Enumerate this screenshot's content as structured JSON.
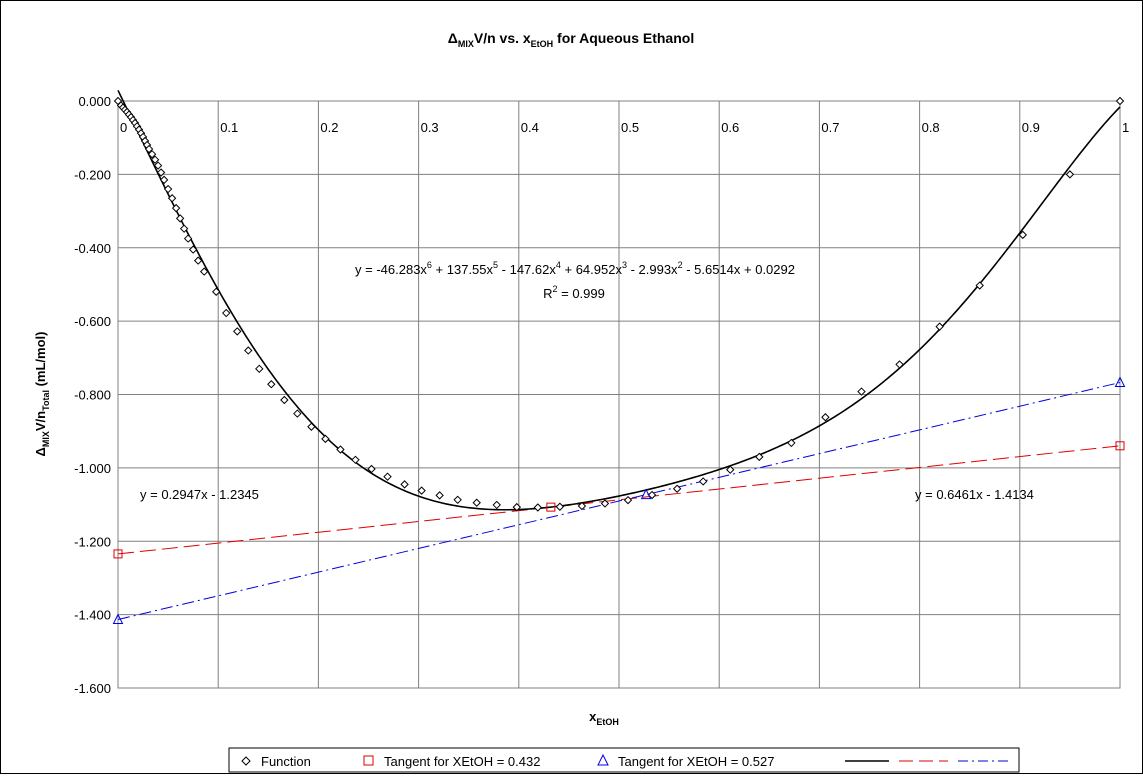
{
  "chart_data": {
    "type": "scatter",
    "title": {
      "main": "Δ",
      "sub1": "MIX",
      "mid": "V/n vs. x",
      "sub2": "EtOH",
      "end": " for Aqueous Ethanol"
    },
    "xlabel": {
      "main": "x",
      "sub": "EtOH"
    },
    "ylabel": {
      "main": "Δ",
      "sub1": "MIX",
      "mid": "V/n",
      "sub2": "Total",
      "end": " (mL/mol)"
    },
    "xlim": [
      0,
      1
    ],
    "ylim": [
      -1.6,
      0
    ],
    "x_ticks": [
      "0",
      "0.1",
      "0.2",
      "0.3",
      "0.4",
      "0.5",
      "0.6",
      "0.7",
      "0.8",
      "0.9",
      "1"
    ],
    "y_ticks": [
      "0.000",
      "-0.200",
      "-0.400",
      "-0.600",
      "-0.800",
      "-1.000",
      "-1.200",
      "-1.400",
      "-1.600"
    ],
    "grid": true,
    "legend_position": "bottom",
    "series": [
      {
        "name": "Function",
        "marker": "diamond",
        "color": "#000000",
        "points": [
          [
            0.0,
            0.0
          ],
          [
            0.003,
            -0.012
          ],
          [
            0.005,
            -0.018
          ],
          [
            0.007,
            -0.024
          ],
          [
            0.009,
            -0.03
          ],
          [
            0.011,
            -0.037
          ],
          [
            0.013,
            -0.044
          ],
          [
            0.015,
            -0.052
          ],
          [
            0.017,
            -0.06
          ],
          [
            0.019,
            -0.069
          ],
          [
            0.021,
            -0.078
          ],
          [
            0.023,
            -0.088
          ],
          [
            0.025,
            -0.098
          ],
          [
            0.027,
            -0.109
          ],
          [
            0.029,
            -0.12
          ],
          [
            0.031,
            -0.131
          ],
          [
            0.034,
            -0.145
          ],
          [
            0.037,
            -0.16
          ],
          [
            0.04,
            -0.176
          ],
          [
            0.043,
            -0.195
          ],
          [
            0.046,
            -0.215
          ],
          [
            0.05,
            -0.24
          ],
          [
            0.054,
            -0.265
          ],
          [
            0.058,
            -0.292
          ],
          [
            0.062,
            -0.32
          ],
          [
            0.066,
            -0.348
          ],
          [
            0.07,
            -0.375
          ],
          [
            0.075,
            -0.405
          ],
          [
            0.08,
            -0.435
          ],
          [
            0.086,
            -0.465
          ],
          [
            0.098,
            -0.52
          ],
          [
            0.108,
            -0.578
          ],
          [
            0.119,
            -0.628
          ],
          [
            0.13,
            -0.68
          ],
          [
            0.141,
            -0.73
          ],
          [
            0.153,
            -0.772
          ],
          [
            0.166,
            -0.815
          ],
          [
            0.179,
            -0.852
          ],
          [
            0.193,
            -0.888
          ],
          [
            0.207,
            -0.921
          ],
          [
            0.222,
            -0.95
          ],
          [
            0.237,
            -0.978
          ],
          [
            0.253,
            -1.003
          ],
          [
            0.269,
            -1.024
          ],
          [
            0.286,
            -1.045
          ],
          [
            0.303,
            -1.062
          ],
          [
            0.321,
            -1.075
          ],
          [
            0.339,
            -1.087
          ],
          [
            0.358,
            -1.095
          ],
          [
            0.378,
            -1.101
          ],
          [
            0.398,
            -1.107
          ],
          [
            0.419,
            -1.108
          ],
          [
            0.441,
            -1.106
          ],
          [
            0.463,
            -1.104
          ],
          [
            0.486,
            -1.097
          ],
          [
            0.509,
            -1.088
          ],
          [
            0.533,
            -1.074
          ],
          [
            0.558,
            -1.057
          ],
          [
            0.584,
            -1.037
          ],
          [
            0.611,
            -1.005
          ],
          [
            0.64,
            -0.97
          ],
          [
            0.672,
            -0.932
          ],
          [
            0.706,
            -0.862
          ],
          [
            0.742,
            -0.792
          ],
          [
            0.78,
            -0.718
          ],
          [
            0.82,
            -0.615
          ],
          [
            0.86,
            -0.503
          ],
          [
            0.903,
            -0.365
          ],
          [
            0.95,
            -0.2
          ],
          [
            1.0,
            0.0
          ]
        ]
      },
      {
        "name": "Tangent for XEtOH = 0.432",
        "marker": "square",
        "color": "#e00000",
        "points": [
          [
            0,
            -1.2345
          ],
          [
            0.432,
            -1.107
          ],
          [
            1,
            -0.9398
          ]
        ]
      },
      {
        "name": "Tangent for XEtOH = 0.527",
        "marker": "triangle",
        "color": "#0000e0",
        "points": [
          [
            0,
            -1.4134
          ],
          [
            0.527,
            -1.073
          ],
          [
            1,
            -0.7673
          ]
        ]
      }
    ],
    "fit": {
      "coefficients": [
        0.0292,
        -5.6514,
        -2.993,
        64.952,
        -147.62,
        137.55,
        -46.283
      ],
      "eq": {
        "a": "y = -46.283x",
        "e6": "6",
        "b": " + 137.55x",
        "e5": "5",
        "c": " - 147.62x",
        "e4": "4",
        "d": " + 64.952x",
        "e3": "3",
        "e": " - 2.993x",
        "e2": "2",
        "f": " - 5.6514x + 0.0292"
      },
      "r2": {
        "a": "R",
        "sup": "2",
        "b": " = 0.999"
      }
    },
    "tangent_lines": [
      {
        "slope": 0.2947,
        "intercept": -1.2345,
        "label": "y = 0.2947x - 1.2345",
        "color": "#e00000",
        "dash": "long"
      },
      {
        "slope": 0.6461,
        "intercept": -1.4134,
        "label": "y = 0.6461x - 1.4134",
        "color": "#0000e0",
        "dash": "dashdot"
      }
    ]
  }
}
